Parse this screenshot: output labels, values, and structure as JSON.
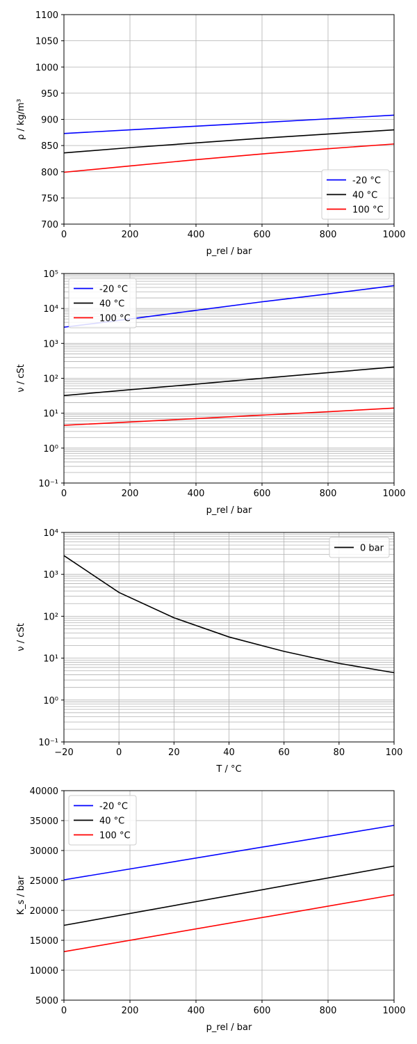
{
  "chart_data": [
    {
      "type": "line",
      "xlabel": "p_rel / bar",
      "ylabel": "ρ / kg/m³",
      "xlim": [
        0,
        1000
      ],
      "ylim": [
        700,
        1100
      ],
      "yscale": "linear",
      "xticks": [
        "0",
        "200",
        "400",
        "600",
        "800",
        "1000"
      ],
      "yticks": [
        "700",
        "750",
        "800",
        "850",
        "900",
        "950",
        "1000",
        "1050",
        "1100"
      ],
      "grid": true,
      "legend_position": "lower-right",
      "series": [
        {
          "name": "-20 °C",
          "color": "#0000ff",
          "x": [
            0,
            200,
            400,
            600,
            800,
            1000
          ],
          "y": [
            873,
            880,
            887,
            894,
            901,
            908
          ]
        },
        {
          "name": "40 °C",
          "color": "#000000",
          "x": [
            0,
            200,
            400,
            600,
            800,
            1000
          ],
          "y": [
            836,
            846,
            855,
            864,
            872,
            880
          ]
        },
        {
          "name": "100 °C",
          "color": "#ff0000",
          "x": [
            0,
            200,
            400,
            600,
            800,
            1000
          ],
          "y": [
            799,
            811,
            823,
            834,
            844,
            853
          ]
        }
      ]
    },
    {
      "type": "line",
      "xlabel": "p_rel / bar",
      "ylabel": "ν / cSt",
      "xlim": [
        0,
        1000
      ],
      "ylim": [
        0.1,
        100000
      ],
      "yscale": "log",
      "xticks": [
        "0",
        "200",
        "400",
        "600",
        "800",
        "1000"
      ],
      "yticks": [
        "10⁻¹",
        "10⁰",
        "10¹",
        "10²",
        "10³",
        "10⁴",
        "10⁵"
      ],
      "grid": true,
      "legend_position": "upper-left",
      "series": [
        {
          "name": "-20 °C",
          "color": "#0000ff",
          "x": [
            0,
            200,
            400,
            600,
            800,
            1000
          ],
          "y": [
            2900,
            5000,
            8800,
            15500,
            26000,
            45000
          ]
        },
        {
          "name": "40 °C",
          "color": "#000000",
          "x": [
            0,
            200,
            400,
            600,
            800,
            1000
          ],
          "y": [
            32,
            47,
            68,
            100,
            145,
            210
          ]
        },
        {
          "name": "100 °C",
          "color": "#ff0000",
          "x": [
            0,
            200,
            400,
            600,
            800,
            1000
          ],
          "y": [
            4.5,
            5.6,
            7.0,
            8.8,
            11.0,
            14.0
          ]
        }
      ]
    },
    {
      "type": "line",
      "xlabel": "T / °C",
      "ylabel": "ν / cSt",
      "xlim": [
        -20,
        100
      ],
      "ylim": [
        0.1,
        10000
      ],
      "yscale": "log",
      "xticks": [
        "−20",
        "0",
        "20",
        "40",
        "60",
        "80",
        "100"
      ],
      "yticks": [
        "10⁻¹",
        "10⁰",
        "10¹",
        "10²",
        "10³",
        "10⁴"
      ],
      "grid": true,
      "legend_position": "upper-right",
      "series": [
        {
          "name": "0 bar",
          "color": "#000000",
          "x": [
            -20,
            0,
            20,
            40,
            60,
            80,
            100
          ],
          "y": [
            2800,
            370,
            92,
            32,
            14.5,
            7.5,
            4.5
          ]
        }
      ]
    },
    {
      "type": "line",
      "xlabel": "p_rel / bar",
      "ylabel": "K_s / bar",
      "xlim": [
        0,
        1000
      ],
      "ylim": [
        5000,
        40000
      ],
      "yscale": "linear",
      "xticks": [
        "0",
        "200",
        "400",
        "600",
        "800",
        "1000"
      ],
      "yticks": [
        "5000",
        "10000",
        "15000",
        "20000",
        "25000",
        "30000",
        "35000",
        "40000"
      ],
      "grid": true,
      "legend_position": "upper-left",
      "series": [
        {
          "name": "-20 °C",
          "color": "#0000ff",
          "x": [
            0,
            1000
          ],
          "y": [
            25100,
            34200
          ]
        },
        {
          "name": "40 °C",
          "color": "#000000",
          "x": [
            0,
            1000
          ],
          "y": [
            17500,
            27400
          ]
        },
        {
          "name": "100 °C",
          "color": "#ff0000",
          "x": [
            0,
            1000
          ],
          "y": [
            13100,
            22600
          ]
        }
      ]
    }
  ]
}
